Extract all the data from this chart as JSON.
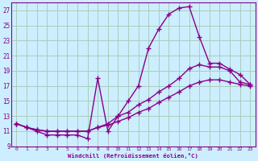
{
  "xlabel": "Windchill (Refroidissement éolien,°C)",
  "background_color": "#cceeff",
  "grid_color": "#aaccbb",
  "line_color": "#880088",
  "xlim": [
    -0.5,
    23.5
  ],
  "ylim": [
    9,
    28
  ],
  "xticks": [
    0,
    1,
    2,
    3,
    4,
    5,
    6,
    7,
    8,
    9,
    10,
    11,
    12,
    13,
    14,
    15,
    16,
    17,
    18,
    19,
    20,
    21,
    22,
    23
  ],
  "yticks": [
    9,
    11,
    13,
    15,
    17,
    19,
    21,
    23,
    25,
    27
  ],
  "series": [
    [
      12.0,
      11.5,
      11.0,
      10.5,
      10.5,
      10.5,
      10.5,
      10.0,
      18.0,
      11.0,
      13.0,
      15.0,
      17.0,
      22.0,
      24.5,
      26.5,
      27.3,
      27.5,
      23.5,
      20.0,
      20.0,
      19.2,
      18.5,
      17.2
    ],
    [
      12.0,
      11.5,
      11.2,
      11.0,
      11.0,
      11.0,
      11.0,
      11.0,
      11.5,
      12.0,
      13.0,
      13.5,
      14.5,
      15.2,
      16.2,
      17.0,
      18.0,
      19.3,
      19.8,
      19.5,
      19.5,
      19.0,
      17.5,
      17.2
    ],
    [
      12.0,
      11.5,
      11.2,
      11.0,
      11.0,
      11.0,
      11.0,
      11.0,
      11.5,
      11.8,
      12.3,
      12.8,
      13.5,
      14.0,
      14.8,
      15.5,
      16.2,
      17.0,
      17.5,
      17.8,
      17.8,
      17.5,
      17.2,
      17.0
    ]
  ],
  "marker": "+",
  "markersize": 4,
  "markeredgewidth": 1.0,
  "linewidth": 1.0
}
